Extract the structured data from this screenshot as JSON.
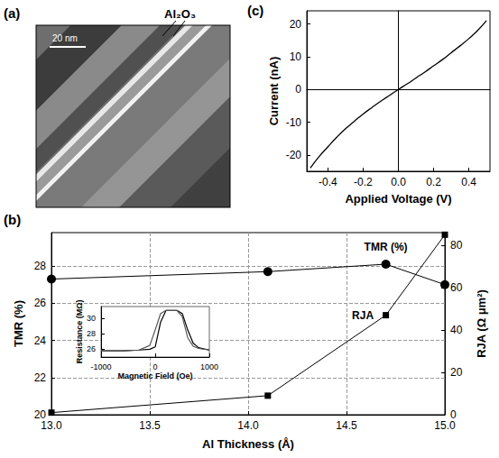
{
  "chart_data": [
    {
      "type": "image",
      "label": "(a)",
      "scale_bar": "20 nm",
      "annotation": "Al₂O₃"
    },
    {
      "type": "line",
      "label": "(b)",
      "x_label": "Al Thickness (Å)",
      "y_label": "TMR (%)",
      "y2_label": "RJA (Ω μm²)",
      "x": [
        13.0,
        14.1,
        14.7,
        15.0
      ],
      "xlim": [
        13,
        15
      ],
      "xticks": [
        {
          "value": 13,
          "label": "13.0"
        },
        {
          "value": 13.5,
          "label": "13.5"
        },
        {
          "value": 14,
          "label": "14.0"
        },
        {
          "value": 14.5,
          "label": "14.5"
        },
        {
          "value": 15,
          "label": "15.0"
        }
      ],
      "ylim": [
        20,
        29.8
      ],
      "yticks": [
        20,
        22,
        24,
        26,
        28
      ],
      "y2lim": [
        0,
        86
      ],
      "y2ticks": [
        0,
        20,
        40,
        60,
        80
      ],
      "grid": true,
      "series": [
        {
          "name": "TMR (%)",
          "color": "#000000",
          "marker": "circle",
          "values": [
            27.3,
            27.7,
            28.1,
            27.0
          ]
        },
        {
          "name": "RJA",
          "color": "#000000",
          "marker": "square",
          "axis": "y2",
          "values": [
            1,
            9,
            47,
            85
          ]
        }
      ],
      "inset": {
        "type": "line",
        "x_label": "Magnetic Field (Oe)",
        "y_label": "Resistance (MΩ)",
        "x": [
          -1000,
          -600,
          -300,
          -100,
          0,
          100,
          200,
          300,
          400,
          500,
          600,
          700,
          800,
          1000
        ],
        "xlim": [
          -1000,
          1000
        ],
        "xticks": [
          -1000,
          0,
          1000
        ],
        "ylim": [
          25,
          31.5
        ],
        "yticks": [
          26,
          28,
          30
        ],
        "series": [
          {
            "color": "#000000",
            "values": [
              25.8,
              25.8,
              25.9,
              26.0,
              26.3,
              29.5,
              31.0,
              31.0,
              31.0,
              30.6,
              28.5,
              26.8,
              26.2,
              25.9
            ]
          },
          {
            "color": "#555555",
            "values": [
              25.8,
              25.8,
              25.9,
              26.5,
              28.5,
              30.6,
              31.0,
              31.0,
              31.0,
              30.2,
              27.5,
              26.4,
              26.1,
              25.9
            ]
          }
        ]
      }
    },
    {
      "type": "line",
      "label": "(c)",
      "x_label": "Applied Voltage (V)",
      "y_label": "Current (nA)",
      "x": [
        -0.5,
        -0.45,
        -0.4,
        -0.35,
        -0.3,
        -0.25,
        -0.2,
        -0.15,
        -0.1,
        -0.05,
        0,
        0.05,
        0.1,
        0.15,
        0.2,
        0.25,
        0.3,
        0.35,
        0.4,
        0.45,
        0.5
      ],
      "values": [
        -24,
        -20.5,
        -17.5,
        -14.6,
        -12,
        -9.7,
        -7.5,
        -5.5,
        -3.6,
        -1.8,
        0,
        1.7,
        3.5,
        5.3,
        7.2,
        9.1,
        11.2,
        13.3,
        15.5,
        18,
        21
      ],
      "color": "#000000",
      "xlim": [
        -0.52,
        0.52
      ],
      "xticks": [
        -0.4,
        -0.2,
        {
          "value": 0,
          "label": "0.0"
        },
        0.2,
        0.4
      ],
      "ylim": [
        -25,
        24
      ],
      "yticks": [
        -20,
        -10,
        0,
        10,
        20
      ],
      "grid": false
    }
  ]
}
